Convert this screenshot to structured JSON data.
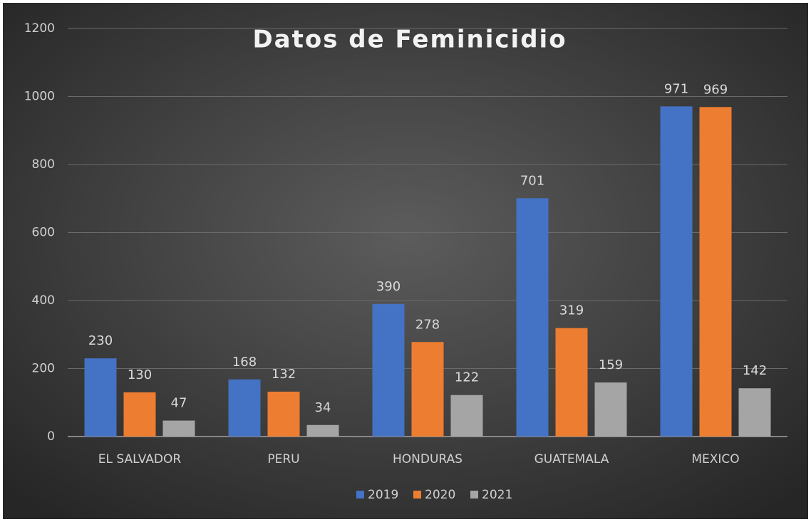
{
  "chart_data": {
    "type": "bar",
    "title": "Datos de Feminicidio",
    "categories": [
      "EL SALVADOR",
      "PERU",
      "HONDURAS",
      "GUATEMALA",
      "MEXICO"
    ],
    "series": [
      {
        "name": "2019",
        "color": "#4472c4",
        "values": [
          230,
          168,
          390,
          701,
          971
        ]
      },
      {
        "name": "2020",
        "color": "#ed7d31",
        "values": [
          130,
          132,
          278,
          319,
          969
        ]
      },
      {
        "name": "2021",
        "color": "#a5a5a5",
        "values": [
          47,
          34,
          122,
          159,
          142
        ]
      }
    ],
    "ylim": [
      0,
      1200
    ],
    "yticks": [
      0,
      200,
      400,
      600,
      800,
      1000,
      1200
    ],
    "grid": true,
    "legend": "bottom"
  }
}
